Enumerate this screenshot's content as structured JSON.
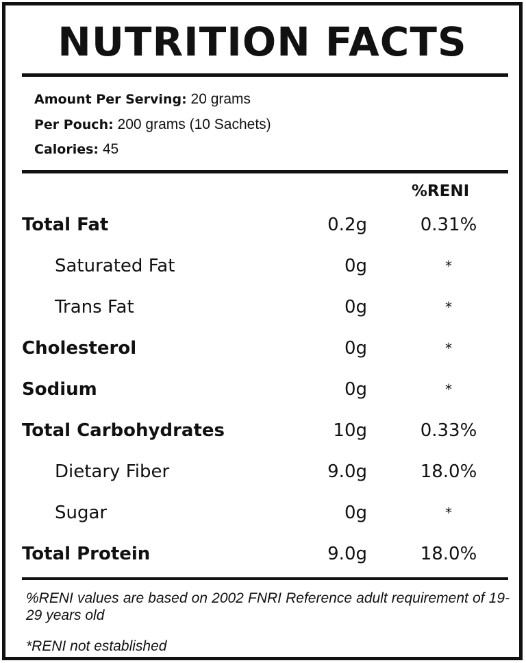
{
  "title": "NUTRITION FACTS",
  "serving": {
    "amount_label": "Amount Per Serving:",
    "amount_value": "20 grams",
    "pouch_label": "Per Pouch:",
    "pouch_value": "200 grams (10 Sachets)",
    "calories_label": "Calories:",
    "calories_value": "45"
  },
  "table": {
    "reni_header": "%RENI",
    "rows": [
      {
        "name": "Total Fat",
        "amount": "0.2g",
        "reni": "0.31%",
        "level": "main"
      },
      {
        "name": "Saturated Fat",
        "amount": "0g",
        "reni": "*",
        "level": "sub"
      },
      {
        "name": "Trans Fat",
        "amount": "0g",
        "reni": "*",
        "level": "sub"
      },
      {
        "name": "Cholesterol",
        "amount": "0g",
        "reni": "*",
        "level": "main"
      },
      {
        "name": "Sodium",
        "amount": "0g",
        "reni": "*",
        "level": "main"
      },
      {
        "name": "Total Carbohydrates",
        "amount": "10g",
        "reni": "0.33%",
        "level": "main"
      },
      {
        "name": "Dietary Fiber",
        "amount": "9.0g",
        "reni": "18.0%",
        "level": "sub"
      },
      {
        "name": "Sugar",
        "amount": "0g",
        "reni": "*",
        "level": "sub"
      },
      {
        "name": "Total Protein",
        "amount": "9.0g",
        "reni": "18.0%",
        "level": "main"
      }
    ]
  },
  "footnotes": {
    "reni_basis": "%RENI values are based on 2002 FNRI Reference adult requirement of 19-29 years old",
    "not_established": "*RENI not established"
  },
  "colors": {
    "ink": "#111111",
    "background": "#ffffff"
  }
}
